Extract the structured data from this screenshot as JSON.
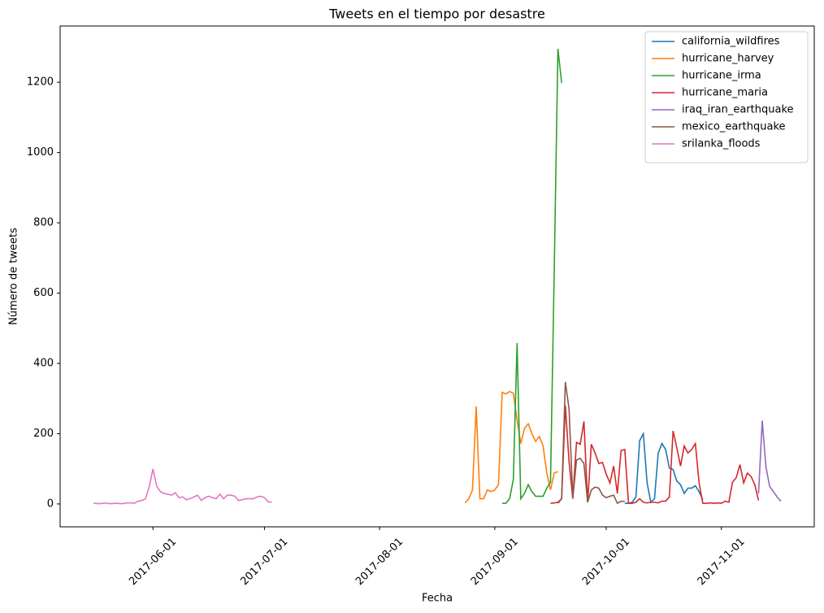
{
  "chart_data": {
    "type": "line",
    "title": "Tweets en el tiempo por desastre",
    "x_label": "Fecha",
    "y_label": "Número de tweets",
    "xlim": [
      "2017-05-07",
      "2017-11-26"
    ],
    "xticks": [
      "2017-06-01",
      "2017-07-01",
      "2017-08-01",
      "2017-09-01",
      "2017-10-01",
      "2017-11-01"
    ],
    "ylim": [
      -65,
      1360
    ],
    "yticks": [
      0,
      200,
      400,
      600,
      800,
      1000,
      1200
    ],
    "legend": "upper right",
    "series": [
      {
        "name": "california_wildfires",
        "color": "#1f77b4",
        "x": [
          "2017-10-06",
          "2017-10-07",
          "2017-10-08",
          "2017-10-09",
          "2017-10-10",
          "2017-10-11",
          "2017-10-12",
          "2017-10-13",
          "2017-10-14",
          "2017-10-15",
          "2017-10-16",
          "2017-10-17",
          "2017-10-18",
          "2017-10-19",
          "2017-10-20",
          "2017-10-21",
          "2017-10-22",
          "2017-10-23",
          "2017-10-24",
          "2017-10-25",
          "2017-10-26",
          "2017-10-27"
        ],
        "values": [
          2,
          2,
          5,
          20,
          180,
          200,
          60,
          5,
          15,
          145,
          172,
          155,
          102,
          98,
          65,
          55,
          30,
          45,
          45,
          52,
          35,
          12
        ]
      },
      {
        "name": "hurricane_harvey",
        "color": "#ff7f0e",
        "x": [
          "2017-08-24",
          "2017-08-25",
          "2017-08-26",
          "2017-08-27",
          "2017-08-28",
          "2017-08-29",
          "2017-08-30",
          "2017-08-31",
          "2017-09-01",
          "2017-09-02",
          "2017-09-03",
          "2017-09-04",
          "2017-09-05",
          "2017-09-06",
          "2017-09-07",
          "2017-09-08",
          "2017-09-09",
          "2017-09-10",
          "2017-09-11",
          "2017-09-12",
          "2017-09-13",
          "2017-09-14",
          "2017-09-15",
          "2017-09-16",
          "2017-09-17",
          "2017-09-18"
        ],
        "values": [
          3,
          15,
          40,
          278,
          15,
          15,
          40,
          35,
          40,
          55,
          318,
          313,
          320,
          315,
          240,
          172,
          215,
          228,
          200,
          178,
          192,
          165,
          88,
          40,
          88,
          92
        ]
      },
      {
        "name": "hurricane_irma",
        "color": "#2ca02c",
        "x": [
          "2017-09-03",
          "2017-09-04",
          "2017-09-05",
          "2017-09-06",
          "2017-09-07",
          "2017-09-08",
          "2017-09-09",
          "2017-09-10",
          "2017-09-11",
          "2017-09-12",
          "2017-09-13",
          "2017-09-14",
          "2017-09-15",
          "2017-09-16",
          "2017-09-17",
          "2017-09-18",
          "2017-09-19"
        ],
        "values": [
          2,
          2,
          15,
          70,
          458,
          15,
          30,
          55,
          35,
          22,
          22,
          22,
          45,
          62,
          660,
          1295,
          1198
        ]
      },
      {
        "name": "hurricane_maria",
        "color": "#d62728",
        "x": [
          "2017-09-16",
          "2017-09-17",
          "2017-09-18",
          "2017-09-19",
          "2017-09-20",
          "2017-09-21",
          "2017-09-22",
          "2017-09-23",
          "2017-09-24",
          "2017-09-25",
          "2017-09-26",
          "2017-09-27",
          "2017-09-28",
          "2017-09-29",
          "2017-09-30",
          "2017-10-01",
          "2017-10-02",
          "2017-10-03",
          "2017-10-04",
          "2017-10-05",
          "2017-10-06",
          "2017-10-07",
          "2017-10-08",
          "2017-10-09",
          "2017-10-10",
          "2017-10-11",
          "2017-10-12",
          "2017-10-13",
          "2017-10-14",
          "2017-10-15",
          "2017-10-16",
          "2017-10-17",
          "2017-10-18",
          "2017-10-19",
          "2017-10-20",
          "2017-10-21",
          "2017-10-22",
          "2017-10-23",
          "2017-10-24",
          "2017-10-25",
          "2017-10-26",
          "2017-10-27",
          "2017-10-28",
          "2017-10-29",
          "2017-10-30",
          "2017-10-31",
          "2017-11-01",
          "2017-11-02",
          "2017-11-03",
          "2017-11-04",
          "2017-11-05",
          "2017-11-06",
          "2017-11-07",
          "2017-11-08",
          "2017-11-09",
          "2017-11-10",
          "2017-11-11"
        ],
        "values": [
          2,
          3,
          5,
          15,
          280,
          120,
          15,
          175,
          170,
          235,
          5,
          170,
          145,
          115,
          118,
          85,
          60,
          108,
          30,
          152,
          155,
          2,
          2,
          5,
          15,
          5,
          3,
          5,
          5,
          3,
          8,
          8,
          20,
          208,
          160,
          108,
          165,
          145,
          155,
          172,
          60,
          2,
          2,
          3,
          2,
          3,
          2,
          8,
          5,
          62,
          75,
          112,
          60,
          88,
          78,
          55,
          10
        ]
      },
      {
        "name": "iraq_iran_earthquake",
        "color": "#9467bd",
        "x": [
          "2017-11-11",
          "2017-11-12",
          "2017-11-13",
          "2017-11-14",
          "2017-11-15",
          "2017-11-16",
          "2017-11-17"
        ],
        "values": [
          30,
          237,
          105,
          50,
          35,
          20,
          8
        ]
      },
      {
        "name": "mexico_earthquake",
        "color": "#8c564b",
        "x": [
          "2017-09-18",
          "2017-09-19",
          "2017-09-20",
          "2017-09-21",
          "2017-09-22",
          "2017-09-23",
          "2017-09-24",
          "2017-09-25",
          "2017-09-26",
          "2017-09-27",
          "2017-09-28",
          "2017-09-29",
          "2017-09-30",
          "2017-10-01",
          "2017-10-02",
          "2017-10-03",
          "2017-10-04",
          "2017-10-05",
          "2017-10-06"
        ],
        "values": [
          2,
          15,
          347,
          270,
          15,
          125,
          130,
          115,
          5,
          40,
          48,
          45,
          25,
          18,
          22,
          25,
          2,
          8,
          7
        ]
      },
      {
        "name": "srilanka_floods",
        "color": "#e377c2",
        "x": [
          "2017-05-16",
          "2017-05-17",
          "2017-05-18",
          "2017-05-19",
          "2017-05-20",
          "2017-05-21",
          "2017-05-22",
          "2017-05-23",
          "2017-05-24",
          "2017-05-25",
          "2017-05-26",
          "2017-05-27",
          "2017-05-28",
          "2017-05-29",
          "2017-05-30",
          "2017-05-31",
          "2017-06-01",
          "2017-06-02",
          "2017-06-03",
          "2017-06-04",
          "2017-06-05",
          "2017-06-06",
          "2017-06-07",
          "2017-06-08",
          "2017-06-09",
          "2017-06-10",
          "2017-06-11",
          "2017-06-12",
          "2017-06-13",
          "2017-06-14",
          "2017-06-15",
          "2017-06-16",
          "2017-06-17",
          "2017-06-18",
          "2017-06-19",
          "2017-06-20",
          "2017-06-21",
          "2017-06-22",
          "2017-06-23",
          "2017-06-24",
          "2017-06-25",
          "2017-06-26",
          "2017-06-27",
          "2017-06-28",
          "2017-06-29",
          "2017-06-30",
          "2017-07-01",
          "2017-07-02",
          "2017-07-03"
        ],
        "values": [
          2,
          1,
          1,
          3,
          1,
          1,
          2,
          1,
          1,
          3,
          3,
          2,
          8,
          10,
          15,
          50,
          100,
          50,
          35,
          30,
          28,
          25,
          32,
          18,
          20,
          12,
          15,
          20,
          25,
          10,
          18,
          22,
          18,
          15,
          28,
          15,
          25,
          25,
          22,
          10,
          12,
          15,
          15,
          15,
          20,
          22,
          18,
          6,
          5
        ]
      }
    ]
  }
}
